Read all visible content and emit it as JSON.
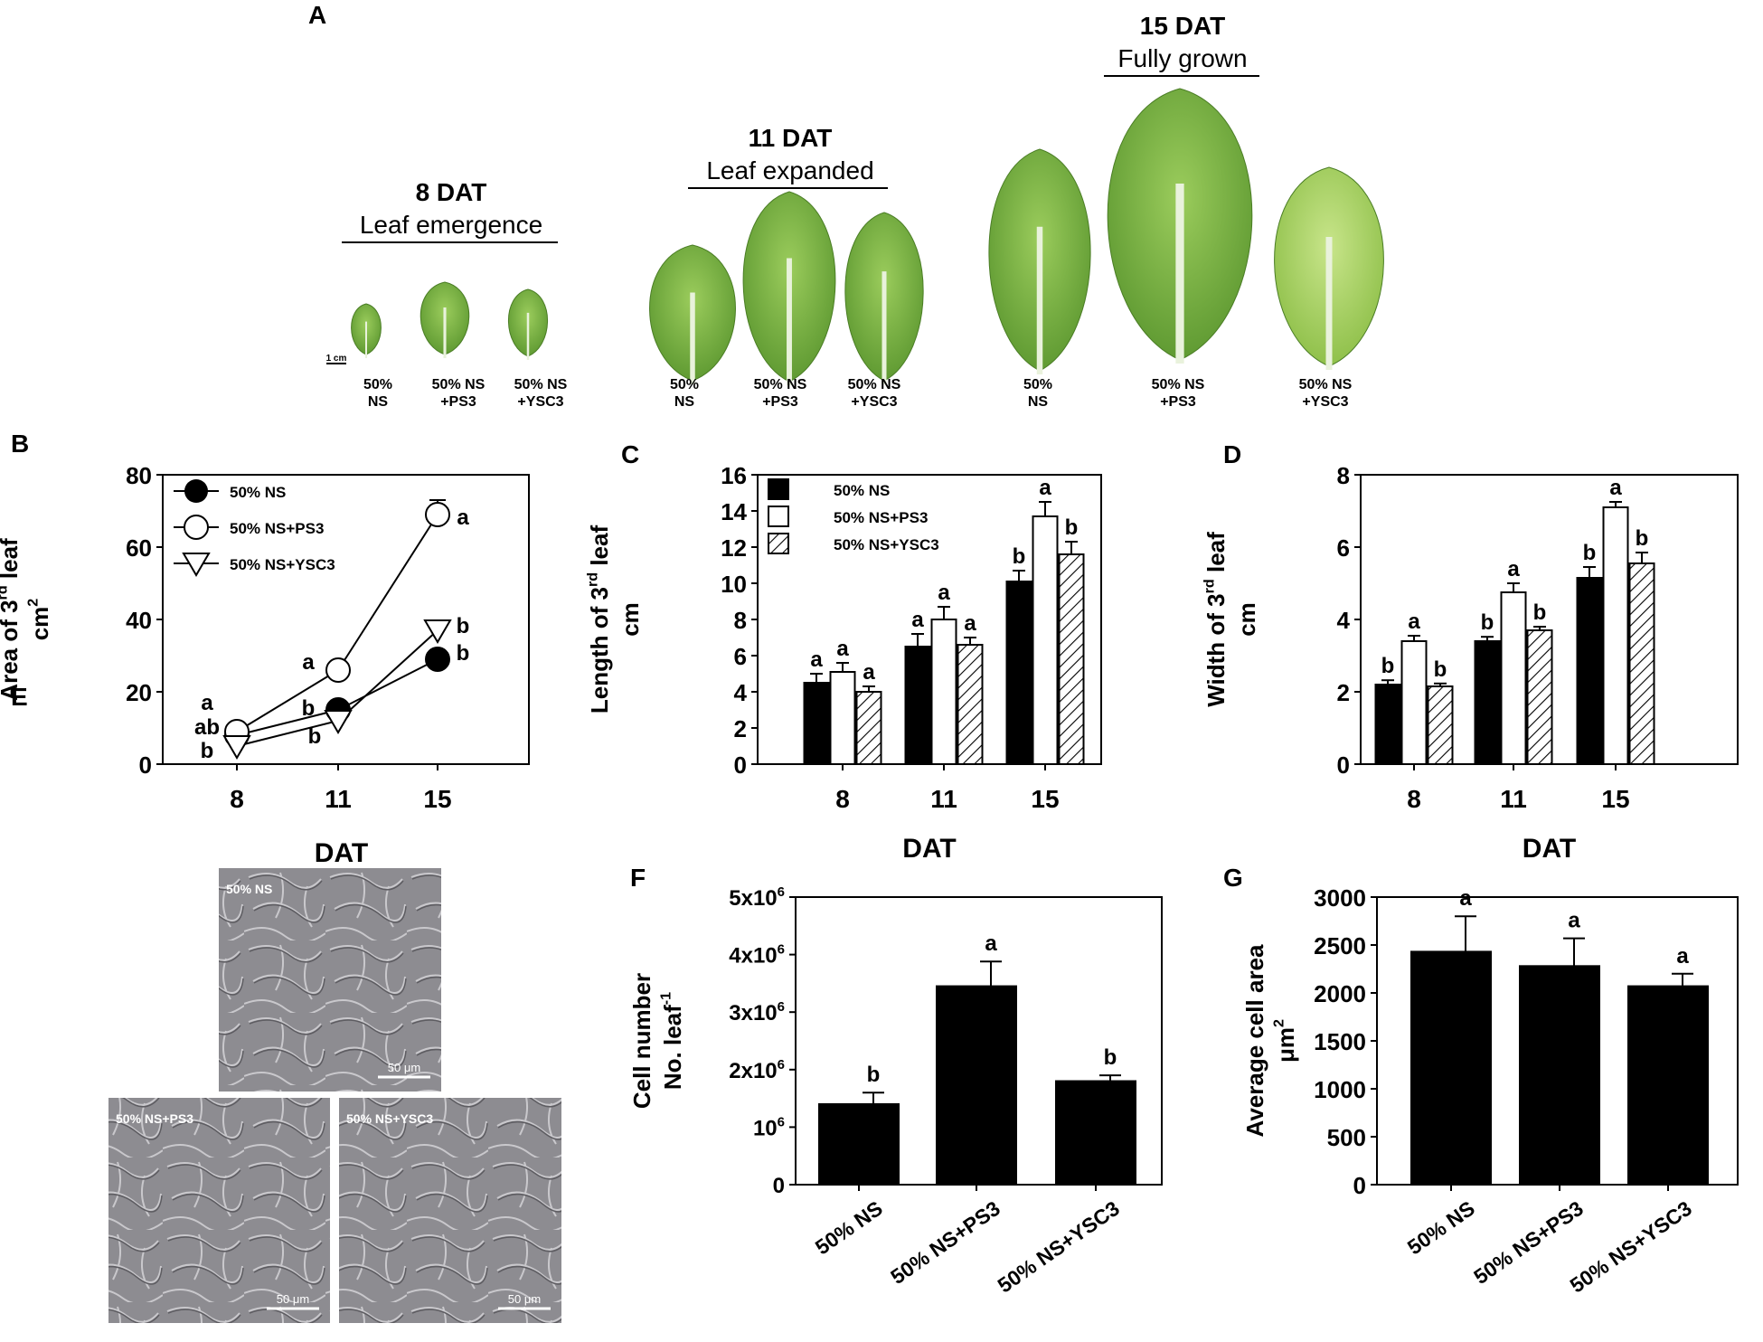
{
  "panels": {
    "A": {
      "letter": "A",
      "scale_bar": "1 cm",
      "stages": [
        {
          "dat": "8 DAT",
          "stage": "Leaf emergence",
          "labels": [
            [
              "50%",
              "NS"
            ],
            [
              "50% NS",
              "+PS3"
            ],
            [
              "50% NS",
              "+YSC3"
            ]
          ]
        },
        {
          "dat": "11 DAT",
          "stage": "Leaf expanded",
          "labels": [
            [
              "50%",
              "NS"
            ],
            [
              "50% NS",
              "+PS3"
            ],
            [
              "50% NS",
              "+YSC3"
            ]
          ]
        },
        {
          "dat": "15 DAT",
          "stage": "Fully grown",
          "labels": [
            [
              "50%",
              "NS"
            ],
            [
              "50% NS",
              "+PS3"
            ],
            [
              "50% NS",
              "+YSC3"
            ]
          ]
        }
      ]
    },
    "E": {
      "letter": "E",
      "micrographs": [
        {
          "label": "50% NS",
          "scale": "50 μm"
        },
        {
          "label": "50% NS+PS3",
          "scale": "50 μm"
        },
        {
          "label": "50% NS+YSC3",
          "scale": "50 μm"
        }
      ]
    }
  },
  "chart_data": [
    {
      "panel": "B",
      "type": "line",
      "ylabel_lines": [
        "Area of 3",
        "rd",
        " leaf",
        "cm",
        "2"
      ],
      "xlabel": "DAT",
      "x": [
        8,
        11,
        15
      ],
      "ylim": [
        0,
        80
      ],
      "yticks": [
        0,
        20,
        40,
        60,
        80
      ],
      "legend_position": "top-left",
      "series": [
        {
          "name": "50% NS",
          "marker": "filled-circle",
          "values": [
            8,
            15,
            29
          ],
          "errors": [
            0.5,
            1,
            1.5
          ],
          "letters": [
            "ab",
            "b",
            "b"
          ]
        },
        {
          "name": "50% NS+PS3",
          "marker": "open-circle",
          "values": [
            9,
            26,
            69
          ],
          "errors": [
            0.5,
            1,
            4
          ],
          "letters": [
            "a",
            "a",
            "a"
          ]
        },
        {
          "name": "50% NS+YSC3",
          "marker": "open-triangle",
          "values": [
            5,
            12,
            37
          ],
          "errors": [
            0.5,
            1,
            2
          ],
          "letters": [
            "b",
            "b",
            "b"
          ]
        }
      ]
    },
    {
      "panel": "C",
      "type": "bar",
      "ylabel_lines": [
        "Length of 3",
        "rd",
        " leaf",
        "cm"
      ],
      "xlabel": "DAT",
      "categories": [
        "8",
        "11",
        "15"
      ],
      "ylim": [
        0,
        16
      ],
      "yticks": [
        0,
        2,
        4,
        6,
        8,
        10,
        12,
        14,
        16
      ],
      "legend_position": "top-left",
      "series": [
        {
          "name": "50% NS",
          "fill": "black",
          "values": [
            4.5,
            6.5,
            10.1
          ],
          "errors": [
            0.5,
            0.7,
            0.6
          ],
          "letters": [
            "a",
            "a",
            "b"
          ]
        },
        {
          "name": "50% NS+PS3",
          "fill": "white",
          "values": [
            5.1,
            8.0,
            13.7
          ],
          "errors": [
            0.5,
            0.7,
            0.8
          ],
          "letters": [
            "a",
            "a",
            "a"
          ]
        },
        {
          "name": "50% NS+YSC3",
          "fill": "hatched",
          "values": [
            4.0,
            6.6,
            11.6
          ],
          "errors": [
            0.3,
            0.4,
            0.7
          ],
          "letters": [
            "a",
            "a",
            "b"
          ]
        }
      ]
    },
    {
      "panel": "D",
      "type": "bar",
      "ylabel_lines": [
        "Width of 3",
        "rd",
        " leaf",
        "cm"
      ],
      "xlabel": "DAT",
      "categories": [
        "8",
        "11",
        "15"
      ],
      "ylim": [
        0,
        8
      ],
      "yticks": [
        0,
        2,
        4,
        6,
        8
      ],
      "series": [
        {
          "name": "50% NS",
          "fill": "black",
          "values": [
            2.2,
            3.4,
            5.15
          ],
          "errors": [
            0.12,
            0.12,
            0.3
          ],
          "letters": [
            "b",
            "b",
            "b"
          ]
        },
        {
          "name": "50% NS+PS3",
          "fill": "white",
          "values": [
            3.4,
            4.75,
            7.1
          ],
          "errors": [
            0.15,
            0.25,
            0.15
          ],
          "letters": [
            "a",
            "a",
            "a"
          ]
        },
        {
          "name": "50% NS+YSC3",
          "fill": "hatched",
          "values": [
            2.15,
            3.7,
            5.55
          ],
          "errors": [
            0.08,
            0.1,
            0.3
          ],
          "letters": [
            "b",
            "b",
            "b"
          ]
        }
      ]
    },
    {
      "panel": "F",
      "type": "bar",
      "ylabel_lines": [
        "Cell number",
        "No. leaf",
        "-1"
      ],
      "categories": [
        "50% NS",
        "50% NS+PS3",
        "50% NS+YSC3"
      ],
      "ylim": [
        0,
        5000000
      ],
      "ytick_values": [
        0,
        1000000,
        2000000,
        3000000,
        4000000,
        5000000
      ],
      "ytick_labels": [
        [
          "0",
          ""
        ],
        [
          "10",
          "6"
        ],
        [
          "2x10",
          "6"
        ],
        [
          "3x10",
          "6"
        ],
        [
          "4x10",
          "6"
        ],
        [
          "5x10",
          "6"
        ]
      ],
      "values": [
        1400000,
        3450000,
        1800000
      ],
      "errors": [
        200000,
        430000,
        100000
      ],
      "letters": [
        "b",
        "a",
        "b"
      ]
    },
    {
      "panel": "G",
      "type": "bar",
      "ylabel_lines": [
        "Average cell area",
        "μm",
        "2"
      ],
      "categories": [
        "50% NS",
        "50% NS+PS3",
        "50% NS+YSC3"
      ],
      "ylim": [
        0,
        3000
      ],
      "yticks": [
        0,
        500,
        1000,
        1500,
        2000,
        2500,
        3000
      ],
      "values": [
        2430,
        2280,
        2070
      ],
      "errors": [
        370,
        290,
        130
      ],
      "letters": [
        "a",
        "a",
        "a"
      ]
    }
  ]
}
